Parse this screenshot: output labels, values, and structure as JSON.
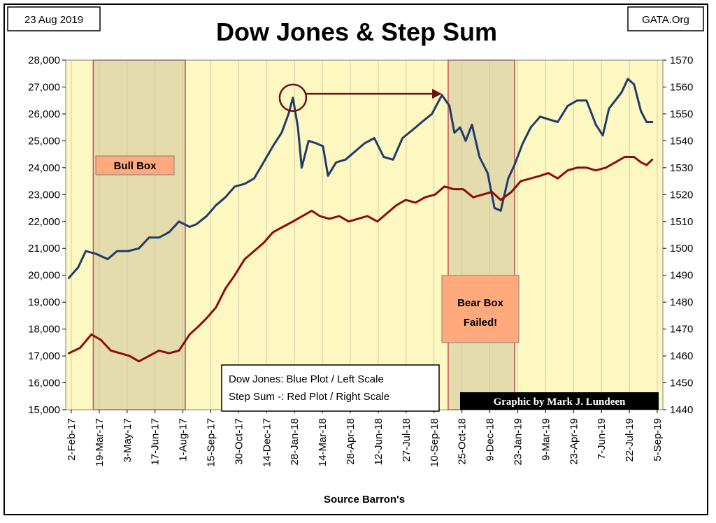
{
  "date_label": "23 Aug 2019",
  "source_label": "GATA.Org",
  "credit": "Graphic by Mark J. Lundeen",
  "colors": {
    "plot_bg": "#fdf7c1",
    "shaded_box": "#e5dcae",
    "box_border": "#c0504d",
    "dow_line": "#1f3c6a",
    "step_line": "#8b0d0d",
    "annotation": "#6b1212",
    "label_box_fill": "#ffa97c",
    "credit_bg": "#000000"
  },
  "annotations": {
    "bull_box": "Bull Box",
    "bear_box_line1": "Bear Box",
    "bear_box_line2": "Failed!"
  },
  "chart_data": {
    "type": "line",
    "title": "Dow Jones & Step Sum",
    "xlabel": "Source Barron's",
    "ylabel_left": "",
    "ylabel_right": "",
    "categories": [
      "2-Feb-17",
      "19-Mar-17",
      "3-May-17",
      "17-Jun-17",
      "1-Aug-17",
      "15-Sep-17",
      "30-Oct-17",
      "14-Dec-17",
      "28-Jan-18",
      "14-Mar-18",
      "28-Apr-18",
      "12-Jun-18",
      "27-Jul-18",
      "10-Sep-18",
      "25-Oct-18",
      "9-Dec-18",
      "23-Jan-19",
      "9-Mar-19",
      "23-Apr-19",
      "7-Jun-19",
      "22-Jul-19",
      "5-Sep-19"
    ],
    "y_left_ticks": [
      "15,000",
      "16,000",
      "17,000",
      "18,000",
      "19,000",
      "20,000",
      "21,000",
      "22,000",
      "23,000",
      "24,000",
      "25,000",
      "26,000",
      "27,000",
      "28,000"
    ],
    "y_right_ticks": [
      "1440",
      "1450",
      "1460",
      "1470",
      "1480",
      "1490",
      "1500",
      "1510",
      "1520",
      "1530",
      "1540",
      "1550",
      "1560",
      "1570"
    ],
    "ylim_left": [
      15000,
      28000
    ],
    "ylim_right": [
      1440,
      1570
    ],
    "grid": "vertical",
    "legend": {
      "placement": "bottom-center",
      "entries": [
        "Dow Jones: Blue Plot / Left Scale",
        "Step Sum -: Red Plot / Right Scale"
      ]
    },
    "shaded_regions": [
      {
        "label": "Bull Box",
        "start": "2017-03-13",
        "end": "2017-08-07",
        "ymin": 15000,
        "ymax": 28000
      },
      {
        "label": "Bear Box Failed!",
        "start": "2018-10-01",
        "end": "2019-01-15",
        "ymin": 15000,
        "ymax": 28000
      }
    ],
    "arrow_annotation": {
      "from_date": "2018-01-26",
      "from_value": 26600,
      "to_date": "2018-09-21",
      "to_value": 26750
    },
    "series": [
      {
        "name": "Dow Jones",
        "axis": "left",
        "x": [
          "2017-02-02",
          "2017-02-17",
          "2017-03-01",
          "2017-03-17",
          "2017-04-05",
          "2017-04-20",
          "2017-05-08",
          "2017-05-25",
          "2017-06-10",
          "2017-06-26",
          "2017-07-12",
          "2017-07-28",
          "2017-08-14",
          "2017-08-25",
          "2017-09-10",
          "2017-09-25",
          "2017-10-10",
          "2017-10-25",
          "2017-11-10",
          "2017-11-25",
          "2017-12-10",
          "2017-12-25",
          "2018-01-08",
          "2018-01-19",
          "2018-01-26",
          "2018-02-03",
          "2018-02-09",
          "2018-02-20",
          "2018-03-05",
          "2018-03-15",
          "2018-03-23",
          "2018-04-05",
          "2018-04-20",
          "2018-05-05",
          "2018-05-20",
          "2018-06-05",
          "2018-06-20",
          "2018-07-05",
          "2018-07-20",
          "2018-08-05",
          "2018-08-20",
          "2018-09-05",
          "2018-09-21",
          "2018-10-03",
          "2018-10-11",
          "2018-10-20",
          "2018-10-29",
          "2018-11-08",
          "2018-11-20",
          "2018-12-03",
          "2018-12-14",
          "2018-12-24",
          "2019-01-05",
          "2019-01-15",
          "2019-01-28",
          "2019-02-10",
          "2019-02-25",
          "2019-03-10",
          "2019-03-25",
          "2019-04-10",
          "2019-04-25",
          "2019-05-10",
          "2019-05-25",
          "2019-06-05",
          "2019-06-15",
          "2019-06-25",
          "2019-07-05",
          "2019-07-15",
          "2019-07-25",
          "2019-08-05",
          "2019-08-14",
          "2019-08-23"
        ],
        "y": [
          19900,
          20300,
          20900,
          20800,
          20600,
          20900,
          20900,
          21000,
          21400,
          21400,
          21600,
          22000,
          21800,
          21900,
          22200,
          22600,
          22900,
          23300,
          23400,
          23600,
          24200,
          24800,
          25300,
          26000,
          26600,
          25500,
          24000,
          25000,
          24900,
          24800,
          23700,
          24200,
          24300,
          24600,
          24900,
          25100,
          24400,
          24300,
          25100,
          25400,
          25700,
          26000,
          26700,
          26300,
          25300,
          25500,
          25000,
          25600,
          24400,
          23800,
          22500,
          22400,
          23600,
          24100,
          24900,
          25500,
          25900,
          25800,
          25700,
          26300,
          26500,
          26500,
          25600,
          25200,
          26200,
          26500,
          26800,
          27300,
          27100,
          26100,
          25700,
          25700
        ]
      },
      {
        "name": "Step Sum",
        "axis": "right",
        "x": [
          "2017-02-02",
          "2017-02-20",
          "2017-03-10",
          "2017-03-25",
          "2017-04-10",
          "2017-04-25",
          "2017-05-10",
          "2017-05-25",
          "2017-06-10",
          "2017-06-26",
          "2017-07-12",
          "2017-07-28",
          "2017-08-14",
          "2017-08-28",
          "2017-09-10",
          "2017-09-25",
          "2017-10-10",
          "2017-10-25",
          "2017-11-10",
          "2017-11-25",
          "2017-12-10",
          "2017-12-25",
          "2018-01-10",
          "2018-01-26",
          "2018-02-10",
          "2018-02-25",
          "2018-03-10",
          "2018-03-25",
          "2018-04-10",
          "2018-04-25",
          "2018-05-10",
          "2018-05-25",
          "2018-06-10",
          "2018-06-25",
          "2018-07-10",
          "2018-07-25",
          "2018-08-10",
          "2018-08-25",
          "2018-09-10",
          "2018-09-25",
          "2018-10-10",
          "2018-10-25",
          "2018-11-10",
          "2018-11-25",
          "2018-12-10",
          "2018-12-24",
          "2019-01-10",
          "2019-01-25",
          "2019-02-10",
          "2019-02-25",
          "2019-03-10",
          "2019-03-25",
          "2019-04-10",
          "2019-04-25",
          "2019-05-10",
          "2019-05-25",
          "2019-06-10",
          "2019-06-25",
          "2019-07-10",
          "2019-07-25",
          "2019-08-05",
          "2019-08-14",
          "2019-08-23"
        ],
        "y": [
          1461,
          1463,
          1468,
          1466,
          1462,
          1461,
          1460,
          1458,
          1460,
          1462,
          1461,
          1462,
          1468,
          1471,
          1474,
          1478,
          1485,
          1490,
          1496,
          1499,
          1502,
          1506,
          1508,
          1510,
          1512,
          1514,
          1512,
          1511,
          1512,
          1510,
          1511,
          1512,
          1510,
          1513,
          1516,
          1518,
          1517,
          1519,
          1520,
          1523,
          1522,
          1522,
          1519,
          1520,
          1521,
          1518,
          1521,
          1525,
          1526,
          1527,
          1528,
          1526,
          1529,
          1530,
          1530,
          1529,
          1530,
          1532,
          1534,
          1534,
          1532,
          1531,
          1533
        ]
      }
    ]
  }
}
